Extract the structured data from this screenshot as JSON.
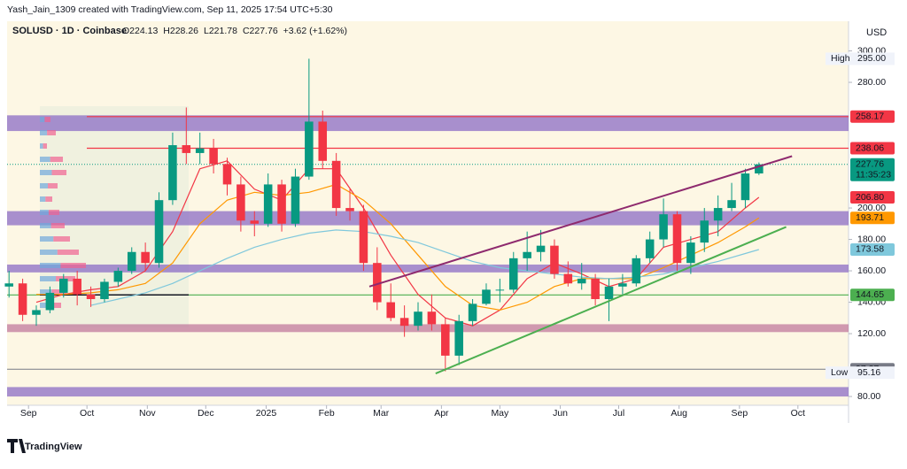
{
  "header": {
    "byline": "Yash_Jain_1309 created with TradingView.com, Sep 11, 2025 17:54 UTC+5:30"
  },
  "footer": {
    "brand": "TradingView"
  },
  "chart_data": {
    "type": "candlestick",
    "title": "SOLUSD · 1D · Coinbase",
    "ohlc_legend": [
      "O224.13",
      "H228.26",
      "L221.78",
      "C227.76",
      "+3.62 (+1.62%)"
    ],
    "currency": "USD",
    "up_color": "#089981",
    "down_color": "#f23645",
    "x": [
      -10,
      -3,
      4,
      11,
      18,
      25,
      32,
      39,
      46,
      53,
      60,
      67,
      74,
      81,
      88,
      95,
      102,
      109,
      116,
      123,
      130,
      137,
      144,
      151,
      158,
      165,
      172,
      179,
      186,
      193,
      200,
      207,
      214,
      221,
      228,
      235,
      242,
      249,
      256,
      263,
      270,
      277,
      284,
      291,
      298,
      305,
      312,
      319,
      326,
      333,
      340,
      347,
      354,
      361,
      368,
      375
    ],
    "open": [
      150,
      152,
      132,
      135,
      146,
      155,
      145,
      142,
      153,
      160,
      172,
      165,
      205,
      240,
      235,
      238,
      228,
      215,
      192,
      190,
      215,
      190,
      220,
      255,
      230,
      200,
      198,
      165,
      140,
      130,
      125,
      134,
      126,
      106,
      128,
      139,
      148,
      148,
      168,
      172,
      176,
      158,
      152,
      155,
      142,
      150,
      152,
      168,
      180,
      196,
      165,
      178,
      192,
      200,
      205,
      222
    ],
    "high": [
      160,
      155,
      138,
      150,
      158,
      160,
      150,
      155,
      162,
      175,
      178,
      210,
      248,
      264,
      248,
      244,
      232,
      220,
      198,
      222,
      218,
      225,
      295,
      262,
      235,
      212,
      202,
      175,
      152,
      138,
      140,
      145,
      130,
      132,
      142,
      152,
      155,
      172,
      185,
      186,
      180,
      166,
      165,
      158,
      155,
      158,
      170,
      185,
      206,
      198,
      182,
      200,
      208,
      216,
      225,
      229
    ],
    "low": [
      143,
      128,
      125,
      133,
      143,
      138,
      137,
      140,
      150,
      158,
      160,
      162,
      202,
      228,
      228,
      222,
      208,
      185,
      182,
      188,
      185,
      188,
      218,
      225,
      195,
      192,
      160,
      135,
      128,
      118,
      122,
      122,
      96,
      100,
      125,
      138,
      140,
      146,
      160,
      166,
      155,
      150,
      148,
      138,
      128,
      145,
      150,
      165,
      175,
      160,
      158,
      172,
      182,
      198,
      200,
      221
    ],
    "close": [
      152,
      132,
      135,
      146,
      155,
      145,
      142,
      153,
      160,
      172,
      165,
      205,
      240,
      235,
      238,
      228,
      215,
      192,
      190,
      215,
      190,
      220,
      255,
      230,
      200,
      198,
      165,
      140,
      130,
      125,
      134,
      126,
      106,
      128,
      139,
      148,
      148,
      168,
      172,
      176,
      158,
      152,
      155,
      142,
      150,
      152,
      168,
      180,
      196,
      165,
      178,
      192,
      200,
      205,
      222,
      227.76
    ],
    "ma_x": [
      4,
      18,
      32,
      46,
      60,
      74,
      88,
      102,
      116,
      130,
      144,
      158,
      172,
      186,
      200,
      214,
      228,
      242,
      256,
      270,
      284,
      298,
      312,
      326,
      340,
      354,
      368,
      375
    ],
    "ma": [
      {
        "color": "#f23645",
        "values": [
          140,
          145,
          148,
          150,
          160,
          185,
          225,
          230,
          212,
          205,
          225,
          225,
          200,
          170,
          145,
          130,
          125,
          135,
          155,
          165,
          158,
          150,
          155,
          175,
          180,
          185,
          200,
          206.8
        ]
      },
      {
        "color": "#ff9800",
        "values": [
          145,
          145,
          146,
          148,
          152,
          165,
          190,
          205,
          210,
          208,
          210,
          215,
          205,
          190,
          170,
          150,
          138,
          135,
          140,
          150,
          155,
          155,
          155,
          162,
          170,
          178,
          188,
          193.71
        ]
      },
      {
        "color": "#7fc8dc",
        "values": [
          null,
          null,
          138,
          142,
          146,
          152,
          160,
          168,
          175,
          180,
          184,
          186,
          185,
          182,
          178,
          172,
          166,
          162,
          160,
          158,
          156,
          155,
          156,
          158,
          162,
          166,
          171,
          173.58
        ]
      }
    ],
    "trendlines": [
      {
        "color": "#8e2a6e",
        "x": [
          175,
          392
        ],
        "y": [
          150,
          233
        ]
      },
      {
        "color": "#4caf50",
        "x": [
          209,
          389
        ],
        "y": [
          94.6,
          188
        ]
      }
    ],
    "zones": [
      {
        "from": 249,
        "to": 259,
        "color": "#8b6cc6"
      },
      {
        "from": 189,
        "to": 198,
        "color": "#8b6cc6"
      },
      {
        "from": 159,
        "to": 164,
        "color": "#8b6cc6"
      },
      {
        "from": 121,
        "to": 126,
        "color": "#c07a9e"
      },
      {
        "from": 80,
        "to": 86,
        "color": "#8b6cc6"
      }
    ],
    "levels": [
      {
        "value": 258.17,
        "color": "#f23645"
      },
      {
        "value": 238.06,
        "color": "#f23645"
      },
      {
        "value": 227.76,
        "color": "#089981"
      },
      {
        "value": 206.8,
        "label": "206.80",
        "color": "#f23645"
      },
      {
        "value": 193.71,
        "color": "#ff9800"
      },
      {
        "value": 173.58,
        "color": "#7fc8dc"
      },
      {
        "value": 144.65,
        "color": "#4caf50"
      },
      {
        "value": 97.37,
        "color": "#787b86"
      }
    ],
    "countdown": "11:35:23",
    "extremes": [
      {
        "name": "High",
        "value": 295,
        "label": "295.00"
      },
      {
        "name": "Low",
        "value": 95.16
      }
    ],
    "xlim": [
      -11,
      421
    ],
    "xticks": [
      {
        "value": 0,
        "label": "Sep"
      },
      {
        "value": 30,
        "label": "Oct"
      },
      {
        "value": 61,
        "label": "Nov"
      },
      {
        "value": 91,
        "label": "Dec"
      },
      {
        "value": 122,
        "label": "2025"
      },
      {
        "value": 153,
        "label": "Feb"
      },
      {
        "value": 181,
        "label": "Mar"
      },
      {
        "value": 212,
        "label": "Apr"
      },
      {
        "value": 242,
        "label": "May"
      },
      {
        "value": 273,
        "label": "Jun"
      },
      {
        "value": 303,
        "label": "Jul"
      },
      {
        "value": 334,
        "label": "Aug"
      },
      {
        "value": 365,
        "label": "Sep"
      },
      {
        "value": 395,
        "label": "Oct"
      }
    ],
    "ylim": [
      74.4,
      318.9
    ],
    "yticks": [
      {
        "value": 300,
        "label": "300.00"
      },
      {
        "value": 280,
        "label": "280.00"
      },
      {
        "value": 200,
        "label": "200.00"
      },
      {
        "value": 180,
        "label": "180.00"
      },
      {
        "value": 160,
        "label": "160.00"
      },
      {
        "value": 140,
        "label": "140.00"
      },
      {
        "value": 120,
        "label": "120.00"
      },
      {
        "value": 80,
        "label": "80.00"
      }
    ]
  }
}
